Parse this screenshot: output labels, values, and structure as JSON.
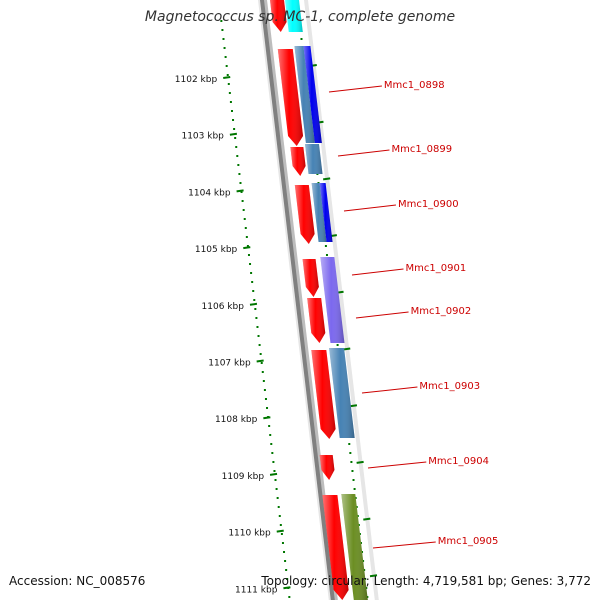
{
  "title": "Magnetococcus sp. MC-1, complete genome",
  "accession_text": "Accession: NC_008576",
  "topology_text": "Topology: circular; Length: 4,719,581 bp; Genes: 3,772",
  "scale_ticks": [
    "1102 kbp",
    "1103 kbp",
    "1104 kbp",
    "1105 kbp",
    "1106 kbp",
    "1107 kbp",
    "1108 kbp",
    "1109 kbp",
    "1110 kbp",
    "1111 kbp"
  ],
  "gene_labels": [
    "Mmc1_0898",
    "Mmc1_0899",
    "Mmc1_0900",
    "Mmc1_0901",
    "Mmc1_0902",
    "Mmc1_0903",
    "Mmc1_0904",
    "Mmc1_0905"
  ],
  "colors": {
    "gene": "#ff0000",
    "blue": "#0000ee",
    "steelblue": "#4682b4",
    "violet": "#7b68ee",
    "olive": "#6b8e23",
    "cyan": "#00ffff",
    "backbone": "#808080",
    "tick": "#007700",
    "label": "#cc0000"
  }
}
